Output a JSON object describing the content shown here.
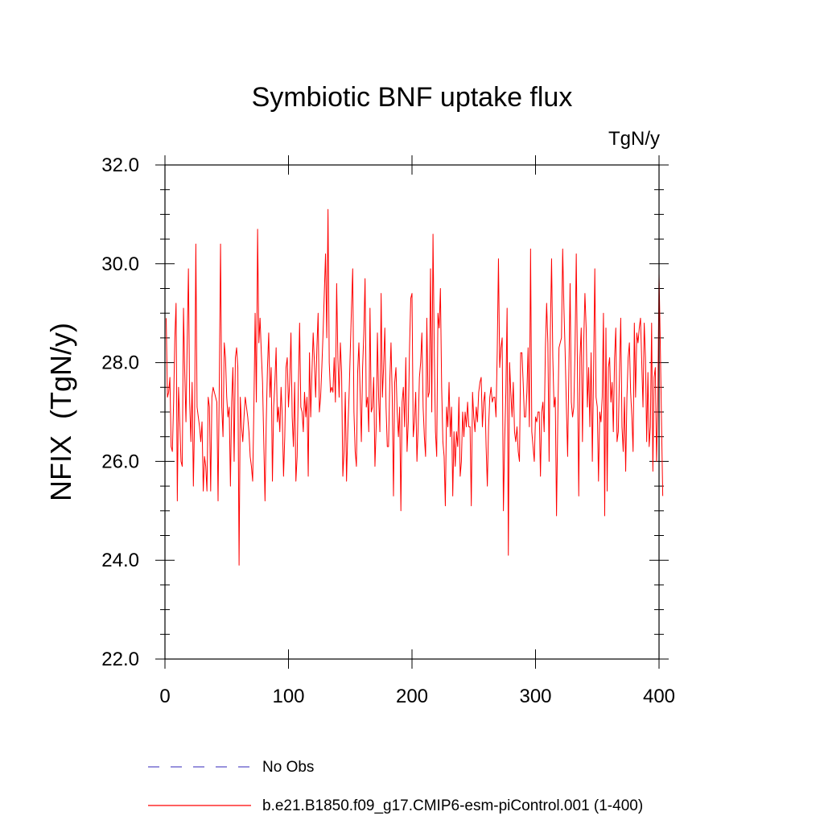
{
  "chart_data": {
    "type": "line",
    "title": "Symbiotic BNF uptake flux",
    "units": "TgN/y",
    "ylabel": "NFIX  (TgN/y)",
    "xlabel": "",
    "xlim": [
      0,
      400
    ],
    "ylim": [
      22.0,
      32.0
    ],
    "x_ticks": [
      0,
      100,
      200,
      300,
      400
    ],
    "x_tick_labels": [
      "0",
      "100",
      "200",
      "300",
      "400"
    ],
    "y_ticks": [
      22.0,
      24.0,
      26.0,
      28.0,
      30.0,
      32.0
    ],
    "y_tick_labels": [
      "22.0",
      "24.0",
      "26.0",
      "28.0",
      "30.0",
      "32.0"
    ],
    "grid": false,
    "legend_position": "bottom",
    "series": [
      {
        "name": "b.e21.B1850.f09_g17.CMIP6-esm-piControl.001 (1-400)",
        "color": "#ff0000",
        "style": "solid",
        "x_start": 1,
        "x_step": 1,
        "values": [
          28.9,
          27.3,
          27.4,
          27.7,
          26.3,
          26.2,
          27.2,
          28.5,
          29.2,
          25.2,
          27.5,
          26.8,
          26.0,
          25.9,
          29.1,
          27.8,
          26.8,
          28.4,
          29.9,
          27.2,
          26.4,
          27.6,
          25.5,
          26.9,
          30.4,
          27.1,
          26.9,
          26.7,
          26.4,
          26.8,
          25.4,
          26.1,
          25.9,
          25.4,
          27.3,
          27.1,
          25.4,
          27.3,
          27.5,
          27.4,
          27.3,
          27.2,
          25.2,
          27.6,
          30.4,
          27.1,
          26.5,
          28.4,
          28.1,
          27.3,
          26.9,
          27.1,
          25.5,
          27.2,
          27.9,
          26.0,
          28.1,
          28.3,
          27.9,
          23.9,
          27.3,
          26.7,
          26.4,
          26.9,
          27.3,
          27.1,
          26.9,
          26.6,
          26.1,
          25.9,
          25.6,
          27.1,
          29.0,
          27.2,
          30.7,
          28.4,
          28.9,
          28.2,
          27.6,
          26.4,
          25.2,
          26.8,
          27.9,
          28.6,
          27.3,
          27.9,
          25.6,
          27.1,
          27.6,
          28.3,
          26.8,
          27.1,
          26.6,
          27.5,
          26.9,
          25.7,
          26.5,
          27.9,
          28.1,
          27.1,
          27.6,
          28.6,
          26.9,
          26.3,
          27.6,
          25.6,
          26.1,
          27.5,
          28.8,
          27.1,
          27.0,
          26.6,
          27.4,
          26.9,
          27.3,
          25.7,
          28.2,
          26.9,
          27.8,
          28.6,
          28.0,
          27.3,
          28.3,
          29.0,
          27.0,
          27.3,
          27.9,
          28.6,
          29.4,
          30.2,
          28.5,
          31.1,
          28.0,
          27.4,
          27.5,
          27.4,
          28.1,
          27.2,
          29.6,
          28.1,
          27.3,
          28.4,
          27.8,
          25.7,
          26.2,
          27.4,
          25.6,
          26.6,
          27.3,
          28.2,
          29.1,
          29.9,
          27.0,
          26.2,
          25.9,
          27.8,
          28.4,
          27.4,
          26.4,
          27.9,
          28.6,
          29.7,
          27.1,
          27.3,
          26.6,
          29.1,
          27.0,
          27.1,
          27.7,
          25.9,
          26.7,
          28.6,
          27.3,
          26.6,
          29.4,
          27.3,
          27.9,
          28.7,
          27.1,
          26.3,
          26.3,
          27.6,
          28.4,
          27.3,
          25.3,
          27.6,
          27.9,
          27.0,
          26.5,
          27.1,
          25.0,
          27.2,
          27.5,
          26.7,
          28.1,
          26.2,
          26.8,
          28.3,
          29.3,
          29.4,
          26.5,
          26.8,
          27.4,
          26.0,
          26.7,
          27.7,
          28.0,
          28.6,
          27.1,
          26.5,
          26.1,
          28.9,
          27.3,
          27.4,
          29.9,
          27.0,
          30.6,
          28.3,
          26.6,
          26.1,
          29.0,
          28.7,
          29.5,
          27.5,
          26.4,
          26.1,
          25.1,
          27.1,
          26.7,
          27.6,
          26.5,
          27.1,
          25.3,
          26.6,
          25.9,
          26.6,
          26.3,
          27.3,
          25.7,
          26.0,
          27.0,
          26.5,
          27.0,
          26.7,
          27.2,
          26.7,
          26.7,
          25.1,
          27.4,
          26.9,
          26.6,
          27.1,
          26.8,
          27.4,
          27.6,
          27.7,
          26.7,
          27.2,
          27.4,
          26.3,
          25.5,
          26.7,
          27.3,
          27.5,
          27.2,
          27.3,
          27.3,
          26.9,
          28.2,
          30.1,
          27.9,
          28.3,
          28.5,
          25.0,
          26.4,
          27.4,
          29.1,
          24.1,
          28.0,
          27.4,
          26.9,
          27.6,
          26.6,
          26.4,
          26.7,
          26.2,
          26.0,
          28.2,
          28.2,
          27.6,
          26.9,
          26.9,
          27.4,
          28.3,
          26.7,
          30.3,
          26.6,
          26.3,
          26.0,
          26.9,
          26.8,
          27.0,
          27.0,
          25.7,
          27.0,
          27.2,
          26.6,
          28.3,
          29.2,
          28.4,
          26.0,
          28.6,
          30.1,
          28.1,
          27.1,
          27.3,
          24.9,
          26.8,
          28.3,
          28.4,
          28.5,
          30.3,
          29.1,
          28.2,
          27.1,
          26.1,
          27.8,
          29.6,
          27.2,
          26.9,
          27.1,
          28.3,
          30.2,
          27.7,
          25.3,
          28.1,
          28.7,
          26.4,
          28.4,
          29.4,
          28.7,
          27.1,
          27.9,
          26.7,
          28.2,
          26.0,
          27.8,
          29.9,
          27.3,
          27.1,
          25.6,
          27.0,
          26.8,
          27.3,
          29.0,
          24.9,
          28.7,
          25.4,
          27.9,
          28.1,
          27.2,
          27.6,
          26.6,
          28.1,
          28.7,
          26.4,
          26.6,
          27.8,
          28.9,
          26.7,
          26.2,
          27.3,
          25.8,
          27.3,
          28.1,
          28.4,
          27.4,
          26.9,
          26.2,
          28.8,
          27.3,
          28.6,
          28.4,
          28.7,
          28.9,
          28.0,
          27.1,
          28.8,
          28.1,
          26.4,
          27.8,
          26.3,
          26.7,
          28.8,
          25.8,
          27.7,
          27.9,
          26.0,
          27.2,
          29.8,
          28.4,
          26.8,
          25.3
        ]
      }
    ],
    "legend": [
      {
        "label": "No Obs",
        "color": "#5a50c8",
        "style": "dashed"
      },
      {
        "label": "b.e21.B1850.f09_g17.CMIP6-esm-piControl.001 (1-400)",
        "color": "#ff0000",
        "style": "solid"
      }
    ]
  }
}
